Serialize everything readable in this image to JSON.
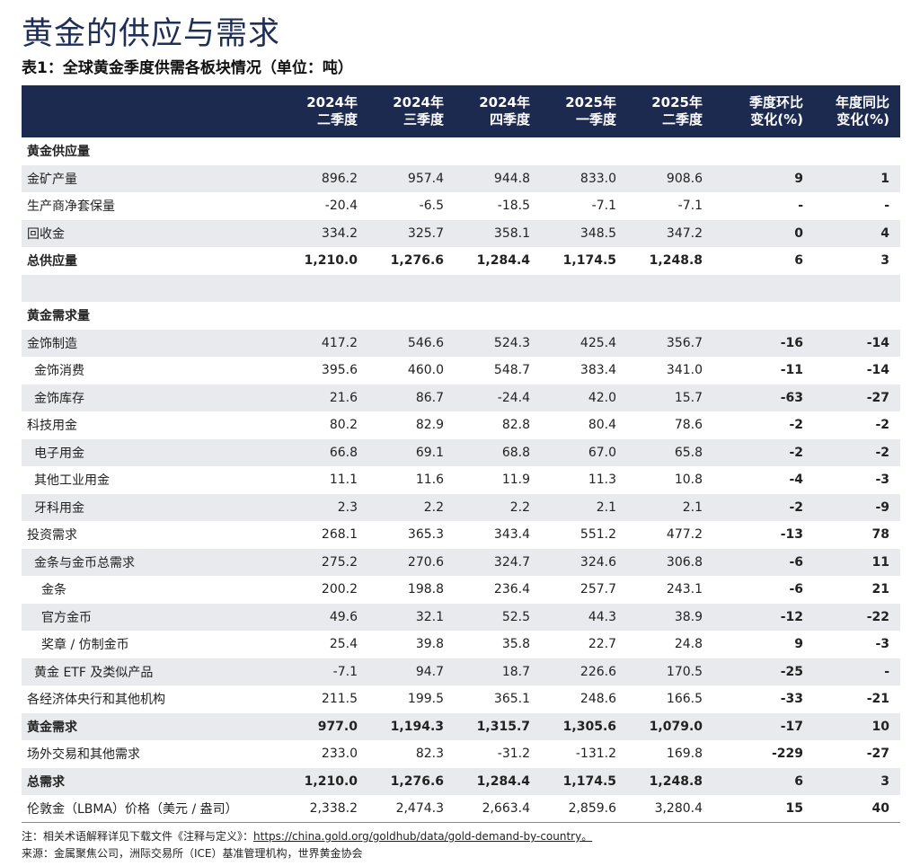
{
  "title": "黄金的供应与需求",
  "subtitle": "表1：全球黄金季度供需各板块情况（单位：吨）",
  "headers": [
    {
      "l1": "2024年",
      "l2": "二季度"
    },
    {
      "l1": "2024年",
      "l2": "三季度"
    },
    {
      "l1": "2024年",
      "l2": "四季度"
    },
    {
      "l1": "2025年",
      "l2": "一季度"
    },
    {
      "l1": "2025年",
      "l2": "二季度"
    },
    {
      "l1": "季度环比",
      "l2": "变化(%)"
    },
    {
      "l1": "年度同比",
      "l2": "变化(%)"
    }
  ],
  "rows": [
    {
      "label": "黄金供应量",
      "type": "section",
      "shade": false,
      "indent": 0,
      "values": [
        "",
        "",
        "",
        "",
        "",
        "",
        ""
      ]
    },
    {
      "label": "金矿产量",
      "type": "row",
      "shade": true,
      "indent": 0,
      "values": [
        "896.2",
        "957.4",
        "944.8",
        "833.0",
        "908.6",
        "9",
        "1"
      ]
    },
    {
      "label": "生产商净套保量",
      "type": "row",
      "shade": false,
      "indent": 0,
      "values": [
        "-20.4",
        "-6.5",
        "-18.5",
        "-7.1",
        "-7.1",
        "-",
        "-"
      ]
    },
    {
      "label": "回收金",
      "type": "row",
      "shade": true,
      "indent": 0,
      "values": [
        "334.2",
        "325.7",
        "358.1",
        "348.5",
        "347.2",
        "0",
        "4"
      ]
    },
    {
      "label": "总供应量",
      "type": "bold",
      "shade": false,
      "indent": 0,
      "values": [
        "1,210.0",
        "1,276.6",
        "1,284.4",
        "1,174.5",
        "1,248.8",
        "6",
        "3"
      ]
    },
    {
      "label": "",
      "type": "spacer",
      "shade": true,
      "indent": 0,
      "values": [
        "",
        "",
        "",
        "",
        "",
        "",
        ""
      ]
    },
    {
      "label": "黄金需求量",
      "type": "section",
      "shade": false,
      "indent": 0,
      "values": [
        "",
        "",
        "",
        "",
        "",
        "",
        ""
      ]
    },
    {
      "label": "金饰制造",
      "type": "row",
      "shade": true,
      "indent": 0,
      "values": [
        "417.2",
        "546.6",
        "524.3",
        "425.4",
        "356.7",
        "-16",
        "-14"
      ]
    },
    {
      "label": "金饰消费",
      "type": "row",
      "shade": false,
      "indent": 1,
      "values": [
        "395.6",
        "460.0",
        "548.7",
        "383.4",
        "341.0",
        "-11",
        "-14"
      ]
    },
    {
      "label": "金饰库存",
      "type": "row",
      "shade": true,
      "indent": 1,
      "values": [
        "21.6",
        "86.7",
        "-24.4",
        "42.0",
        "15.7",
        "-63",
        "-27"
      ]
    },
    {
      "label": "科技用金",
      "type": "row",
      "shade": false,
      "indent": 0,
      "values": [
        "80.2",
        "82.9",
        "82.8",
        "80.4",
        "78.6",
        "-2",
        "-2"
      ]
    },
    {
      "label": "电子用金",
      "type": "row",
      "shade": true,
      "indent": 1,
      "values": [
        "66.8",
        "69.1",
        "68.8",
        "67.0",
        "65.8",
        "-2",
        "-2"
      ]
    },
    {
      "label": "其他工业用金",
      "type": "row",
      "shade": false,
      "indent": 1,
      "values": [
        "11.1",
        "11.6",
        "11.9",
        "11.3",
        "10.8",
        "-4",
        "-3"
      ]
    },
    {
      "label": "牙科用金",
      "type": "row",
      "shade": true,
      "indent": 1,
      "values": [
        "2.3",
        "2.2",
        "2.2",
        "2.1",
        "2.1",
        "-2",
        "-9"
      ]
    },
    {
      "label": "投资需求",
      "type": "row",
      "shade": false,
      "indent": 0,
      "values": [
        "268.1",
        "365.3",
        "343.4",
        "551.2",
        "477.2",
        "-13",
        "78"
      ]
    },
    {
      "label": "金条与金币总需求",
      "type": "row",
      "shade": true,
      "indent": 1,
      "values": [
        "275.2",
        "270.6",
        "324.7",
        "324.6",
        "306.8",
        "-6",
        "11"
      ]
    },
    {
      "label": "金条",
      "type": "row",
      "shade": false,
      "indent": 2,
      "values": [
        "200.2",
        "198.8",
        "236.4",
        "257.7",
        "243.1",
        "-6",
        "21"
      ]
    },
    {
      "label": "官方金币",
      "type": "row",
      "shade": true,
      "indent": 2,
      "values": [
        "49.6",
        "32.1",
        "52.5",
        "44.3",
        "38.9",
        "-12",
        "-22"
      ]
    },
    {
      "label": "奖章 / 仿制金币",
      "type": "row",
      "shade": false,
      "indent": 2,
      "values": [
        "25.4",
        "39.8",
        "35.8",
        "22.7",
        "24.8",
        "9",
        "-3"
      ]
    },
    {
      "label": "黄金 ETF 及类似产品",
      "type": "row",
      "shade": true,
      "indent": 1,
      "values": [
        "-7.1",
        "94.7",
        "18.7",
        "226.6",
        "170.5",
        "-25",
        "-"
      ]
    },
    {
      "label": "各经济体央行和其他机构",
      "type": "row",
      "shade": false,
      "indent": 0,
      "values": [
        "211.5",
        "199.5",
        "365.1",
        "248.6",
        "166.5",
        "-33",
        "-21"
      ]
    },
    {
      "label": "黄金需求",
      "type": "bold",
      "shade": true,
      "indent": 0,
      "values": [
        "977.0",
        "1,194.3",
        "1,315.7",
        "1,305.6",
        "1,079.0",
        "-17",
        "10"
      ]
    },
    {
      "label": "场外交易和其他需求",
      "type": "row",
      "shade": false,
      "indent": 0,
      "values": [
        "233.0",
        "82.3",
        "-31.2",
        "-131.2",
        "169.8",
        "-229",
        "-27"
      ]
    },
    {
      "label": "总需求",
      "type": "bold",
      "shade": true,
      "indent": 0,
      "values": [
        "1,210.0",
        "1,276.6",
        "1,284.4",
        "1,174.5",
        "1,248.8",
        "6",
        "3"
      ]
    },
    {
      "label": "伦敦金（LBMA）价格（美元 / 盎司）",
      "type": "row",
      "shade": false,
      "indent": 0,
      "values": [
        "2,338.2",
        "2,474.3",
        "2,663.4",
        "2,859.6",
        "3,280.4",
        "15",
        "40"
      ]
    }
  ],
  "notes": {
    "note_prefix": "注：相关术语解释详见下载文件《注释与定义》：",
    "note_link": "https://china.gold.org/goldhub/data/gold-demand-by-country。",
    "source": "来源：金属聚焦公司，洲际交易所（ICE）基准管理机构，世界黄金协会"
  }
}
